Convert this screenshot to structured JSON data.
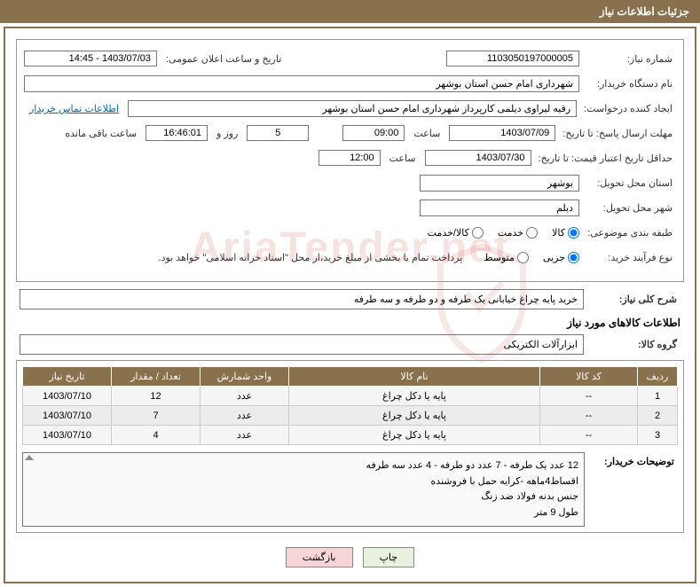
{
  "header": {
    "title": "جزئیات اطلاعات نیاز"
  },
  "fields": {
    "need_number_label": "شماره نیاز:",
    "need_number": "1103050197000005",
    "announce_label": "تاریخ و ساعت اعلان عمومی:",
    "announce_value": "1403/07/03 - 14:45",
    "buyer_org_label": "نام دستگاه خریدار:",
    "buyer_org": "شهرداری امام حسن استان بوشهر",
    "requester_label": "ایجاد کننده درخواست:",
    "requester": "رقیه لیراوی دیلمی   کارپرداز شهرداری امام حسن استان بوشهر",
    "contact_link": "اطلاعات تماس خریدار",
    "deadline_send_label": "مهلت ارسال پاسخ: تا تاریخ:",
    "deadline_send_date": "1403/07/09",
    "time_label": "ساعت",
    "deadline_send_time": "09:00",
    "days_value": "5",
    "days_and": "روز و",
    "countdown": "16:46:01",
    "remaining": "ساعت باقی مانده",
    "validity_label": "حداقل تاریخ اعتبار قیمت: تا تاریخ:",
    "validity_date": "1403/07/30",
    "validity_time": "12:00",
    "province_label": "استان محل تحویل:",
    "province": "بوشهر",
    "city_label": "شهر محل تحویل:",
    "city": "دیلم",
    "category_label": "طبقه بندی موضوعی:",
    "purchase_type_label": "نوع فرآیند خرید:",
    "purchase_note": "پرداخت تمام یا بخشی از مبلغ خرید،از محل \"اسناد خزانه اسلامی\" خواهد بود."
  },
  "radios": {
    "good": "کالا",
    "service": "خدمت",
    "good_service": "کالا/خدمت",
    "minor": "جزیی",
    "medium": "متوسط"
  },
  "need_desc": {
    "label": "شرح کلی نیاز:",
    "text": "خرید پایه چراغ خیابانی یک طرفه  و دو طرفه و سه طرفه"
  },
  "goods_section": {
    "title": "اطلاعات کالاهای مورد نیاز",
    "group_label": "گروه کالا:",
    "group": "ابزارآلات الکتریکی"
  },
  "table": {
    "headers": {
      "row": "ردیف",
      "code": "کد کالا",
      "name": "نام کالا",
      "unit": "واحد شمارش",
      "qty": "تعداد / مقدار",
      "date": "تاریخ نیاز"
    },
    "rows": [
      {
        "n": "1",
        "code": "--",
        "name": "پایه یا دکل چراغ",
        "unit": "عدد",
        "qty": "12",
        "date": "1403/07/10"
      },
      {
        "n": "2",
        "code": "--",
        "name": "پایه یا دکل چراغ",
        "unit": "عدد",
        "qty": "7",
        "date": "1403/07/10"
      },
      {
        "n": "3",
        "code": "--",
        "name": "پایه یا دکل چراغ",
        "unit": "عدد",
        "qty": "4",
        "date": "1403/07/10"
      }
    ]
  },
  "buyer_notes": {
    "label": "توضیحات خریدار:",
    "line1": "12 عدد یک طرفه - 7 عدد دو طرفه - 4 عدد سه طرفه",
    "line2": "اقساط4ماهه -کرایه حمل با فروشنده",
    "line3": "جنس بدنه فولاد ضد زنگ",
    "line4": "طول 9 متر"
  },
  "buttons": {
    "print": "چاپ",
    "back": "بازگشت"
  },
  "watermark": "AriaTender.net"
}
